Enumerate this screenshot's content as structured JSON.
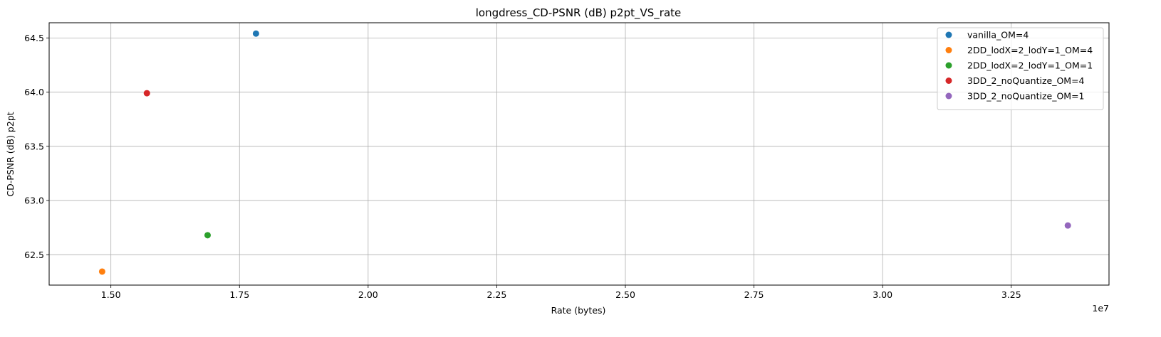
{
  "chart_data": {
    "type": "scatter",
    "title": "longdress_CD-PSNR (dB) p2pt_VS_rate",
    "xlabel": "Rate (bytes)",
    "ylabel": "CD-PSNR (dB) p2pt",
    "x_offset_text": "1e7",
    "x_scale": 10000000,
    "xlim": [
      13800000,
      34400000
    ],
    "ylim": [
      62.22,
      64.64
    ],
    "x_ticks": [
      1.5,
      1.75,
      2.0,
      2.25,
      2.5,
      2.75,
      3.0,
      3.25
    ],
    "x_tick_labels": [
      "1.50",
      "1.75",
      "2.00",
      "2.25",
      "2.50",
      "2.75",
      "3.00",
      "3.25"
    ],
    "y_ticks": [
      62.5,
      63.0,
      63.5,
      64.0,
      64.5
    ],
    "y_tick_labels": [
      "62.5",
      "63.0",
      "63.5",
      "64.0",
      "64.5"
    ],
    "grid": true,
    "legend_position": "top-right",
    "series": [
      {
        "name": "vanilla_OM=4",
        "color": "#1f77b4",
        "points": [
          {
            "x": 17820000,
            "y": 64.54
          }
        ]
      },
      {
        "name": "2DD_lodX=2_lodY=1_OM=4",
        "color": "#ff7f0e",
        "points": [
          {
            "x": 14830000,
            "y": 62.345
          }
        ]
      },
      {
        "name": "2DD_lodX=2_lodY=1_OM=1",
        "color": "#2ca02c",
        "points": [
          {
            "x": 16880000,
            "y": 62.68
          }
        ]
      },
      {
        "name": "3DD_2_noQuantize_OM=4",
        "color": "#d62728",
        "points": [
          {
            "x": 15700000,
            "y": 63.99
          }
        ]
      },
      {
        "name": "3DD_2_noQuantize_OM=1",
        "color": "#9467bd",
        "points": [
          {
            "x": 33600000,
            "y": 62.77
          }
        ]
      }
    ]
  }
}
